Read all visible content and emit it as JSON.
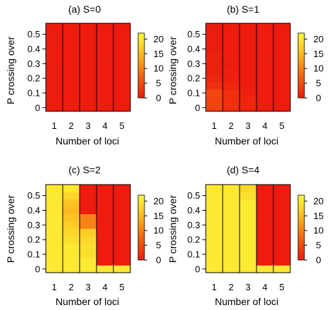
{
  "chart_data": [
    {
      "type": "heatmap",
      "title": "(a) S=0",
      "xlabel": "Number of loci",
      "ylabel": "P crossing over",
      "x": [
        1,
        2,
        3,
        4,
        5
      ],
      "y": [
        0,
        0.05,
        0.1,
        0.15,
        0.2,
        0.25,
        0.3,
        0.35,
        0.4,
        0.45,
        0.5,
        0.55
      ],
      "y_ticks": [
        "0",
        "0.1",
        "0.2",
        "0.3",
        "0.4",
        "0.5"
      ],
      "colorbar": {
        "range": [
          0,
          22
        ],
        "ticks": [
          "0",
          "5",
          "10",
          "15",
          "20"
        ]
      },
      "z": [
        [
          0,
          0,
          0,
          0,
          0,
          0,
          0,
          0,
          0,
          0,
          0,
          0
        ],
        [
          0,
          0,
          0,
          0,
          0,
          0,
          0,
          0,
          0,
          0,
          0,
          0
        ],
        [
          0,
          0,
          0,
          0,
          0,
          0,
          0,
          0,
          0,
          0,
          0,
          0
        ],
        [
          0,
          0,
          0,
          0,
          0,
          0,
          0,
          0,
          0,
          0,
          0,
          0
        ],
        [
          0,
          0,
          0,
          0,
          0,
          0,
          0,
          0,
          0,
          0,
          0,
          0
        ]
      ]
    },
    {
      "type": "heatmap",
      "title": "(b) S=1",
      "xlabel": "Number of loci",
      "ylabel": "P crossing over",
      "x": [
        1,
        2,
        3,
        4,
        5
      ],
      "y": [
        0,
        0.05,
        0.1,
        0.15,
        0.2,
        0.25,
        0.3,
        0.35,
        0.4,
        0.45,
        0.5,
        0.55
      ],
      "y_ticks": [
        "0",
        "0.1",
        "0.2",
        "0.3",
        "0.4",
        "0.5"
      ],
      "colorbar": {
        "range": [
          0,
          22
        ],
        "ticks": [
          "0",
          "5",
          "10",
          "15",
          "20"
        ]
      },
      "z": [
        [
          4,
          4,
          4.5,
          2,
          1,
          0.5,
          0.5,
          0.5,
          0,
          0,
          0,
          0
        ],
        [
          2,
          2,
          2,
          1,
          0.3,
          0.3,
          0,
          0,
          0,
          0,
          0,
          0
        ],
        [
          1,
          1,
          0.3,
          0,
          0,
          0,
          0,
          0,
          0,
          0,
          0,
          0
        ],
        [
          0,
          0,
          0,
          0,
          0,
          0,
          0,
          0,
          0,
          0,
          0,
          0
        ],
        [
          0,
          0,
          0,
          0,
          0,
          0,
          0,
          0,
          0,
          0,
          0,
          0
        ]
      ]
    },
    {
      "type": "heatmap",
      "title": "(c) S=2",
      "xlabel": "Number of loci",
      "ylabel": "P crossing over",
      "x": [
        1,
        2,
        3,
        4,
        5
      ],
      "y": [
        0,
        0.05,
        0.1,
        0.15,
        0.2,
        0.25,
        0.3,
        0.35,
        0.4,
        0.45,
        0.5,
        0.55
      ],
      "y_ticks": [
        "0",
        "0.1",
        "0.2",
        "0.3",
        "0.4",
        "0.5"
      ],
      "colorbar": {
        "range": [
          0,
          22
        ],
        "ticks": [
          "0",
          "5",
          "10",
          "15",
          "20"
        ]
      },
      "z": [
        [
          20,
          20,
          20,
          20,
          20,
          20,
          20,
          20,
          20,
          20,
          20,
          20
        ],
        [
          20,
          20,
          20,
          20,
          19,
          18,
          17,
          16,
          15,
          16,
          18,
          20
        ],
        [
          20,
          20,
          19,
          19,
          18,
          17,
          10,
          10,
          0,
          0,
          0,
          0
        ],
        [
          20,
          0,
          0,
          0,
          0,
          0,
          0,
          0,
          0,
          0,
          0,
          0
        ],
        [
          20,
          0,
          0,
          0,
          0,
          0,
          0,
          0,
          0,
          0,
          0,
          0
        ]
      ]
    },
    {
      "type": "heatmap",
      "title": "(d) S=4",
      "xlabel": "Number of loci",
      "ylabel": "P crossing over",
      "x": [
        1,
        2,
        3,
        4,
        5
      ],
      "y": [
        0,
        0.05,
        0.1,
        0.15,
        0.2,
        0.25,
        0.3,
        0.35,
        0.4,
        0.45,
        0.5,
        0.55
      ],
      "y_ticks": [
        "0",
        "0.1",
        "0.2",
        "0.3",
        "0.4",
        "0.5"
      ],
      "colorbar": {
        "range": [
          0,
          22
        ],
        "ticks": [
          "0",
          "5",
          "10",
          "15",
          "20"
        ]
      },
      "z": [
        [
          20,
          20,
          20,
          20,
          20,
          20,
          20,
          20,
          20,
          20,
          20,
          20
        ],
        [
          20,
          20,
          20,
          20,
          20,
          20,
          20,
          20,
          20,
          20,
          20,
          20
        ],
        [
          20,
          20,
          20,
          20,
          20,
          20,
          20,
          20,
          20,
          20,
          19,
          18
        ],
        [
          20,
          0,
          0,
          0,
          0,
          0,
          0,
          0,
          0,
          0,
          0,
          0
        ],
        [
          20,
          0,
          0,
          0,
          0,
          0,
          0,
          0,
          0,
          0,
          0,
          0
        ]
      ]
    }
  ]
}
